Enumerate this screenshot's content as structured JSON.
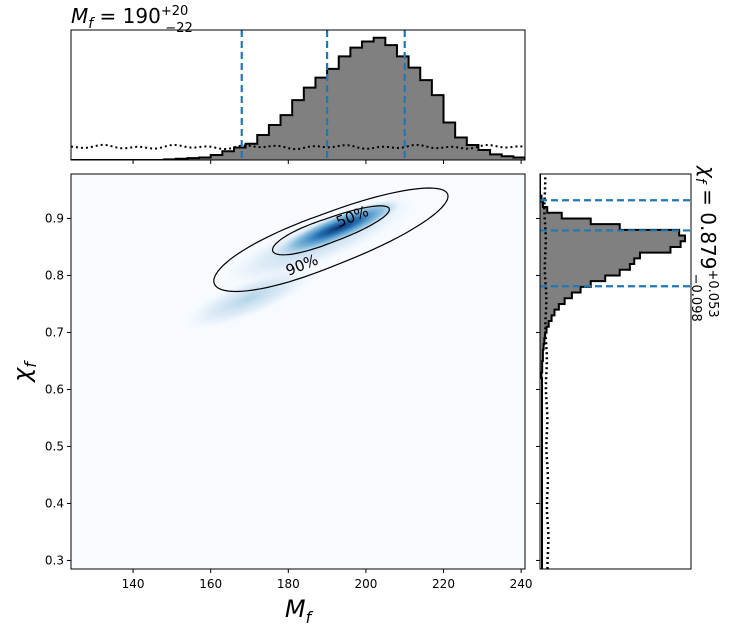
{
  "chart_data": [
    {
      "panel": "top-marginal",
      "type": "bar",
      "title_main": "M",
      "title_sub": "f",
      "title_value": " = 190",
      "title_plus": "+20",
      "title_minus": "−22",
      "xlim": [
        124,
        241
      ],
      "median": 190,
      "interval": [
        168,
        210
      ],
      "bins_start": 124,
      "bin_width": 3,
      "counts": [
        0,
        0,
        0,
        0,
        0,
        0,
        0,
        0,
        0.005,
        0.01,
        0.015,
        0.02,
        0.04,
        0.07,
        0.1,
        0.13,
        0.2,
        0.28,
        0.36,
        0.48,
        0.58,
        0.66,
        0.73,
        0.83,
        0.9,
        0.95,
        0.98,
        0.92,
        0.83,
        0.74,
        0.64,
        0.52,
        0.3,
        0.18,
        0.12,
        0.08,
        0.045,
        0.03,
        0.02,
        0.01,
        0,
        0
      ],
      "prior_line": "dotted"
    },
    {
      "panel": "right-marginal",
      "type": "bar",
      "title_main": "χ",
      "title_sub": "f",
      "title_value": " = 0.879",
      "title_plus": "+0.053",
      "title_minus": "−0.098",
      "ylim": [
        0.285,
        0.978
      ],
      "median": 0.879,
      "interval": [
        0.781,
        0.932
      ],
      "bins_start": 0.62,
      "bin_width": 0.01,
      "counts": [
        0.01,
        0.015,
        0.015,
        0.02,
        0.02,
        0.025,
        0.03,
        0.035,
        0.045,
        0.06,
        0.08,
        0.1,
        0.13,
        0.17,
        0.22,
        0.28,
        0.35,
        0.45,
        0.55,
        0.62,
        0.65,
        0.69,
        0.9,
        0.97,
        1.0,
        0.96,
        0.55,
        0.35,
        0.15,
        0.05,
        0.02,
        0.01,
        0,
        0,
        0,
        0,
        0
      ],
      "prior_line": "dotted"
    },
    {
      "panel": "joint",
      "type": "heatmap",
      "xlabel_main": "M",
      "xlabel_sub": "f",
      "ylabel_main": "χ",
      "ylabel_sub": "f",
      "xlim": [
        124,
        241
      ],
      "ylim": [
        0.285,
        0.978
      ],
      "xticks": [
        140,
        160,
        180,
        200,
        220,
        240
      ],
      "yticks": [
        0.3,
        0.4,
        0.5,
        0.6,
        0.7,
        0.8,
        0.9
      ],
      "peak": [
        193,
        0.884
      ],
      "contours": [
        {
          "label": "50%",
          "label_at": [
            197,
            0.895
          ]
        },
        {
          "label": "90%",
          "label_at": [
            184,
            0.81
          ]
        }
      ]
    }
  ]
}
